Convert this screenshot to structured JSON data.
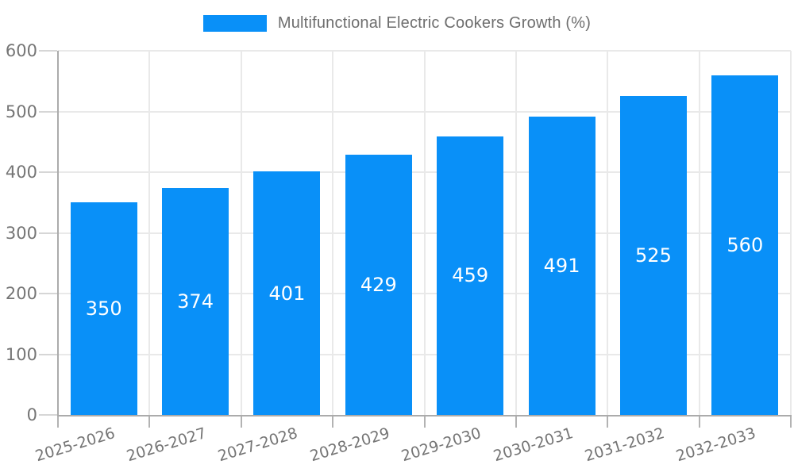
{
  "chart_data": {
    "type": "bar",
    "title": "Multifunctional Electric Cookers Growth (%)",
    "categories": [
      "2025-2026",
      "2026-2027",
      "2027-2028",
      "2028-2029",
      "2029-2030",
      "2030-2031",
      "2031-2032",
      "2032-2033"
    ],
    "series": [
      {
        "name": "Multifunctional Electric Cookers Growth (%)",
        "values": [
          350,
          374,
          401,
          429,
          459,
          491,
          525,
          560
        ]
      }
    ],
    "xlabel": "",
    "ylabel": "",
    "ylim": [
      0,
      600
    ],
    "y_ticks": [
      0,
      100,
      200,
      300,
      400,
      500,
      600
    ],
    "grid": true,
    "legend_position": "top",
    "value_labels": "inside-center"
  },
  "colors": {
    "bar": "#0990F8",
    "value_label_text": "#ffffff",
    "axis_text": "#757575",
    "legend_text": "#6e6e6e",
    "grid_line": "#e9e9e9",
    "axis_line": "#ababab",
    "y_tick": "#d6d6d6",
    "x_tick": "#b3b3b3",
    "background": "#ffffff"
  }
}
